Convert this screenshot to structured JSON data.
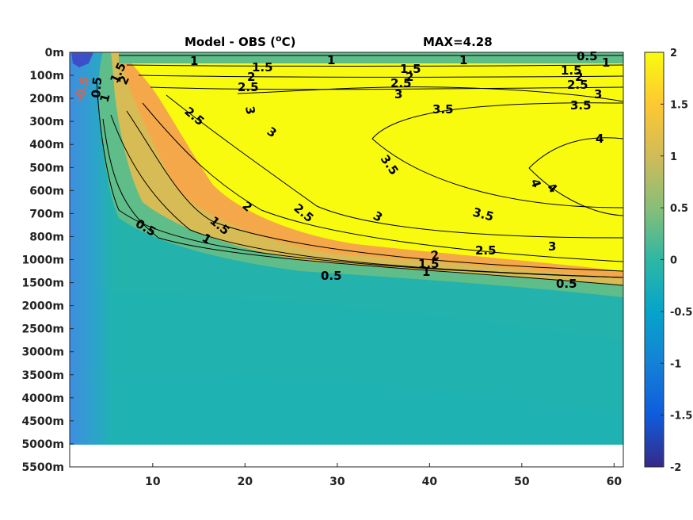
{
  "chart_data": {
    "type": "heatmap",
    "title_left": "Model - OBS (",
    "title_unit_sup": "o",
    "title_unit": "C)",
    "title_right": "MAX=4.28",
    "xlabel": "",
    "ylabel": "",
    "x_ticks": [
      10,
      20,
      30,
      40,
      50,
      60
    ],
    "xlim": [
      1,
      61
    ],
    "y_ticks": [
      "0m",
      "100m",
      "200m",
      "300m",
      "400m",
      "500m",
      "600m",
      "700m",
      "800m",
      "1000m",
      "1500m",
      "2000m",
      "2500m",
      "3000m",
      "3500m",
      "4000m",
      "4500m",
      "5000m",
      "5500m"
    ],
    "colorbar": {
      "ticks": [
        "2",
        "1.5",
        "1",
        "0.5",
        "0",
        "-0.5",
        "-1",
        "-1.5",
        "-2"
      ],
      "range": [
        -2,
        2
      ],
      "colormap": "parula",
      "colors": [
        "#352a87",
        "#0f5cdd",
        "#1481d6",
        "#06a4ca",
        "#2eb7a4",
        "#87bf77",
        "#d1bb59",
        "#fec832",
        "#f9fb0e"
      ]
    },
    "contour_labels": [
      "0.5",
      "1",
      "1.5",
      "2",
      "2.5",
      "3",
      "3.5",
      "4",
      "-0.5"
    ],
    "data_max": 4.28,
    "no_data_below": "5000m"
  }
}
